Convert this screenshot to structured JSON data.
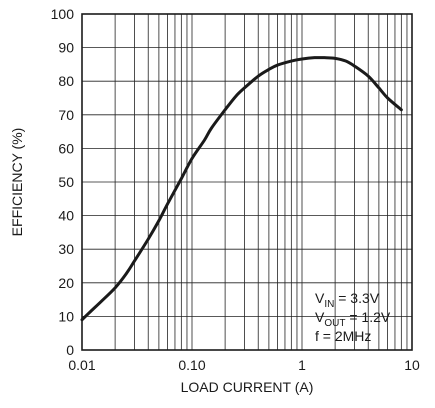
{
  "chart_data": {
    "type": "line",
    "title": "",
    "xlabel": "LOAD CURRENT (A)",
    "ylabel": "EFFICIENCY (%)",
    "xscale": "log",
    "xlim": [
      0.01,
      10
    ],
    "ylim": [
      0,
      100
    ],
    "grid": true,
    "x_tick_labels": [
      "0.01",
      "0.10",
      "1",
      "10"
    ],
    "x_tick_values": [
      0.01,
      0.1,
      1,
      10
    ],
    "y_tick_labels": [
      "0",
      "10",
      "20",
      "30",
      "40",
      "50",
      "60",
      "70",
      "80",
      "90",
      "100"
    ],
    "y_tick_values": [
      0,
      10,
      20,
      30,
      40,
      50,
      60,
      70,
      80,
      90,
      100
    ],
    "series": [
      {
        "x": [
          0.01,
          0.012,
          0.015,
          0.02,
          0.025,
          0.03,
          0.04,
          0.05,
          0.06,
          0.08,
          0.1,
          0.13,
          0.15,
          0.2,
          0.25,
          0.3,
          0.4,
          0.5,
          0.6,
          0.8,
          1.0,
          1.3,
          1.6,
          2.0,
          2.5,
          3.0,
          4.0,
          5.0,
          6.0,
          8.0
        ],
        "y": [
          9,
          11.5,
          14.5,
          18.5,
          22.5,
          26.5,
          33,
          38.5,
          43.5,
          51,
          57,
          62.5,
          66,
          71.5,
          75.5,
          78,
          81.5,
          83.5,
          84.8,
          86,
          86.6,
          87,
          87,
          86.8,
          86,
          84.5,
          81.5,
          78,
          75,
          71.5
        ]
      }
    ],
    "annotations": [
      {
        "base": "V",
        "sub": "IN",
        "rest": " = 3.3V"
      },
      {
        "base": "V",
        "sub": "OUT",
        "rest": " = 1.2V"
      },
      {
        "base": "f = 2MHz",
        "sub": "",
        "rest": ""
      }
    ]
  }
}
